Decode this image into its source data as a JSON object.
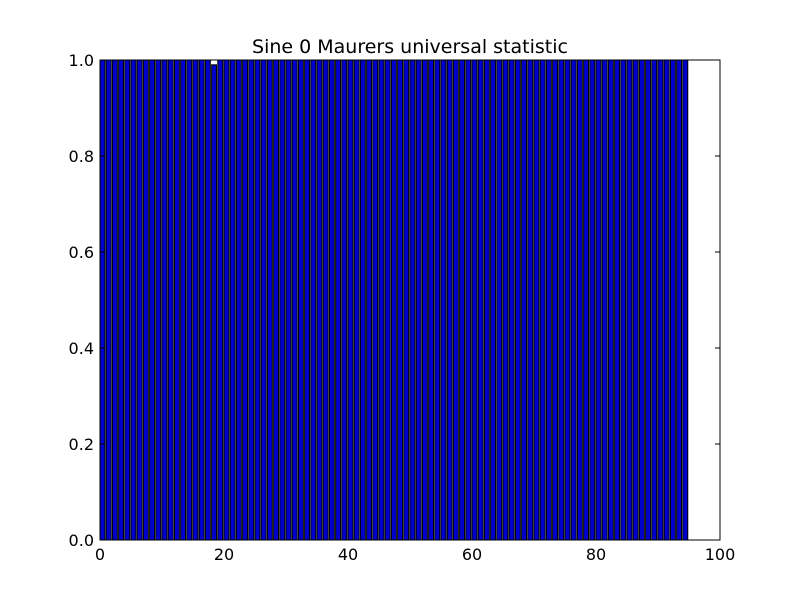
{
  "chart_data": {
    "type": "bar",
    "title": "Sine 0 Maurers universal statistic",
    "xlabel": "",
    "ylabel": "",
    "xlim": [
      0,
      100
    ],
    "ylim": [
      0,
      1.0
    ],
    "x_ticks": [
      "0",
      "20",
      "40",
      "60",
      "80",
      "100"
    ],
    "y_ticks": [
      "0.0",
      "0.2",
      "0.4",
      "0.6",
      "0.8",
      "1.0"
    ],
    "grid": false,
    "bar_color": "#0000cc",
    "edge_color": "#000000",
    "bar_width": 0.8,
    "x": [
      0,
      1,
      2,
      3,
      4,
      5,
      6,
      7,
      8,
      9,
      10,
      11,
      12,
      13,
      14,
      15,
      16,
      17,
      18,
      19,
      20,
      21,
      22,
      23,
      24,
      25,
      26,
      27,
      28,
      29,
      30,
      31,
      32,
      33,
      34,
      35,
      36,
      37,
      38,
      39,
      40,
      41,
      42,
      43,
      44,
      45,
      46,
      47,
      48,
      49,
      50,
      51,
      52,
      53,
      54,
      55,
      56,
      57,
      58,
      59,
      60,
      61,
      62,
      63,
      64,
      65,
      66,
      67,
      68,
      69,
      70,
      71,
      72,
      73,
      74,
      75,
      76,
      77,
      78,
      79,
      80,
      81,
      82,
      83,
      84,
      85,
      86,
      87,
      88,
      89,
      90,
      91,
      92,
      93,
      94
    ],
    "values": [
      1,
      1,
      1,
      1,
      1,
      1,
      1,
      1,
      1,
      1,
      1,
      1,
      1,
      1,
      1,
      1,
      1,
      1,
      0.99,
      1,
      1,
      1,
      1,
      1,
      1,
      1,
      1,
      1,
      1,
      1,
      1,
      1,
      1,
      1,
      1,
      1,
      1,
      1,
      1,
      1,
      1,
      1,
      1,
      1,
      1,
      1,
      1,
      1,
      1,
      1,
      1,
      1,
      1,
      1,
      1,
      1,
      1,
      1,
      1,
      1,
      1,
      1,
      1,
      1,
      1,
      1,
      1,
      1,
      1,
      1,
      1,
      1,
      1,
      1,
      1,
      1,
      1,
      1,
      1,
      1,
      1,
      1,
      1,
      1,
      1,
      1,
      1,
      1,
      1,
      1,
      1,
      1,
      1,
      1,
      1
    ]
  }
}
